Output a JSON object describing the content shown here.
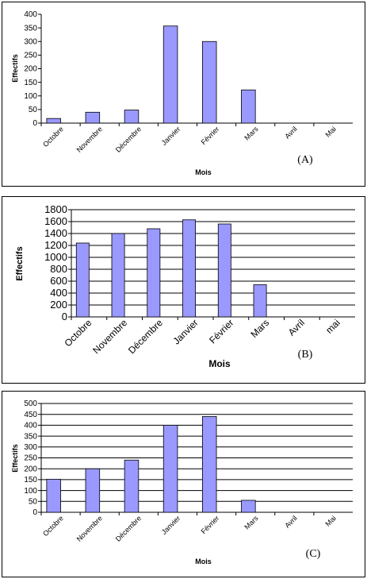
{
  "chart_data": [
    {
      "type": "bar",
      "x_label": "Mois",
      "y_label": "Effectifs",
      "annotation": "(A)",
      "categories": [
        "Octobre",
        "Novembre",
        "Décembre",
        "Janvier",
        "Février",
        "Mars",
        "Avril",
        "Mai"
      ],
      "values": [
        17,
        40,
        48,
        357,
        300,
        122,
        0,
        0
      ],
      "color": "#9999ff",
      "ylim": [
        0,
        400
      ],
      "yticks": [
        0,
        50,
        100,
        150,
        200,
        250,
        300,
        350,
        400
      ],
      "grid": false
    },
    {
      "type": "bar",
      "x_label": "Mois",
      "y_label": "Effectifs",
      "annotation": "(B)",
      "categories": [
        "Octobre",
        "Novembre",
        "Décembre",
        "Janvier",
        "Février",
        "Mars",
        "Avril",
        "mai"
      ],
      "values": [
        1240,
        1400,
        1480,
        1630,
        1560,
        540,
        0,
        0
      ],
      "color": "#9999ff",
      "ylim": [
        0,
        1800
      ],
      "yticks": [
        0,
        200,
        400,
        600,
        800,
        1000,
        1200,
        1400,
        1600,
        1800
      ],
      "grid": true
    },
    {
      "type": "bar",
      "x_label": "Mois",
      "y_label": "Effectifs",
      "annotation": "(C)",
      "categories": [
        "Octobre",
        "Novembre",
        "Décembre",
        "Janvier",
        "Février",
        "Mars",
        "Avril",
        "Mai"
      ],
      "values": [
        152,
        200,
        240,
        400,
        440,
        55,
        0,
        0
      ],
      "color": "#9999ff",
      "ylim": [
        0,
        500
      ],
      "yticks": [
        0,
        50,
        100,
        150,
        200,
        250,
        300,
        350,
        400,
        450,
        500
      ],
      "grid": true
    }
  ]
}
